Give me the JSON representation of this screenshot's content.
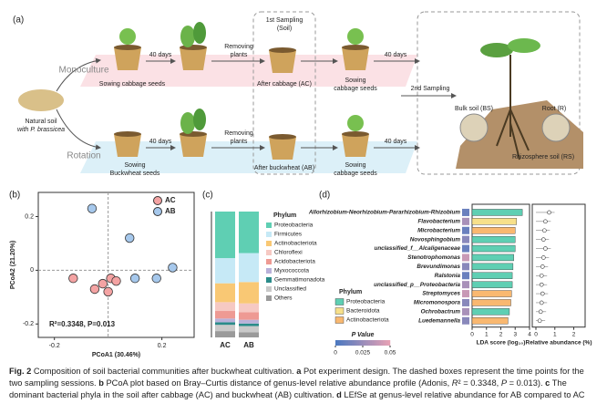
{
  "diagram": {
    "panel": "(a)",
    "monoculture": "Monoculture",
    "rotation": "Rotation",
    "natural_soil": [
      "Natural soil",
      "with P. brassicea"
    ],
    "mono_steps": {
      "sow": "Sowing cabbage seeds",
      "days1": "40 days",
      "remove": [
        "Removing",
        "plants"
      ],
      "sampling1": [
        "1st Sampling",
        "(Soil)"
      ],
      "after": "After cabbage (AC)",
      "sow2": [
        "Sowing",
        "cabbage seeds"
      ],
      "days2": "40 days"
    },
    "rot_steps": {
      "sow": [
        "Sowing",
        "Buckwheat seeds"
      ],
      "days1": "40 days",
      "remove": [
        "Removing",
        "plants"
      ],
      "after": "After buckwheat (AB)",
      "sow2": [
        "Sowing",
        "cabbage seeds"
      ],
      "days2": "40 days"
    },
    "sampling2": "2nd Sampling",
    "bulk": "Bulk soil (BS)",
    "root": "Root (R)",
    "rhizo": "Rhizosphere soil (RS)"
  },
  "chart_data": [
    {
      "type": "scatter",
      "panel": "(b)",
      "xlabel": "PCoA1 (30.46%)",
      "ylabel": "PCoA2 (21.20%)",
      "annotation": "R²=0.3348, P=0.013",
      "xlim": [
        -0.26,
        0.32
      ],
      "ylim": [
        -0.25,
        0.29
      ],
      "xticks": [
        -0.2,
        0.2
      ],
      "yticks": [
        -0.2,
        0,
        0.2
      ],
      "zero_lines": true,
      "legend_position": "upper right",
      "series": [
        {
          "name": "AC",
          "color": "#f4a3a3",
          "x": [
            -0.13,
            -0.02,
            0,
            -0.05,
            0.01,
            0.03
          ],
          "y": [
            -0.03,
            -0.05,
            -0.08,
            -0.07,
            -0.03,
            -0.04
          ]
        },
        {
          "name": "AB",
          "color": "#a6c8ec",
          "x": [
            -0.06,
            0.08,
            0.24,
            0.1,
            0.18
          ],
          "y": [
            0.23,
            0.12,
            0.01,
            -0.03,
            -0.03
          ]
        }
      ]
    },
    {
      "type": "bar",
      "orientation": "vertical",
      "stacked": true,
      "panel": "(c)",
      "legend_title": "Phylum",
      "categories": [
        "AC",
        "AB"
      ],
      "ylim": [
        0,
        100
      ],
      "series": [
        {
          "name": "Proteobacteria",
          "color": "#5fcfb3",
          "values": [
            37,
            33
          ]
        },
        {
          "name": "Firmicutes",
          "color": "#c6e9f6",
          "values": [
            20,
            23
          ]
        },
        {
          "name": "Actinobacteriota",
          "color": "#f9c874",
          "values": [
            15,
            17
          ]
        },
        {
          "name": "Chloroflexi",
          "color": "#f6c9c3",
          "values": [
            7,
            7
          ]
        },
        {
          "name": "Acidobacteriota",
          "color": "#ee9a93",
          "values": [
            6,
            6
          ]
        },
        {
          "name": "Myxococcota",
          "color": "#b9b1d9",
          "values": [
            3,
            3
          ]
        },
        {
          "name": "Gemmatimonadota",
          "color": "#2b8c8a",
          "values": [
            2,
            2
          ]
        },
        {
          "name": "Unclassified",
          "color": "#c9c9c9",
          "values": [
            5,
            5
          ]
        },
        {
          "name": "Others",
          "color": "#9a9a9a",
          "values": [
            5,
            4
          ]
        }
      ]
    },
    {
      "type": "bar",
      "orientation": "horizontal",
      "panel": "(d)",
      "legend_title": "Phylum",
      "categories": [
        "Allorhizobium-Neorhizobium-Pararhizobium-Rhizobium",
        "Flavobacterium",
        "Microbacterium",
        "Novosphingobium",
        "unclassified_f__Alcaligenaceae",
        "Stenotrophomonas",
        "Brevundimonas",
        "Ralstonia",
        "unclassified_p__Proteobacteria",
        "Streptomyces",
        "Micromonospora",
        "Ochrobactrum",
        "Luedemannella"
      ],
      "series": [
        {
          "name": "Proteobacteria",
          "color": "#5fcfb3",
          "values": [
            3.5,
            null,
            null,
            3.0,
            3.0,
            2.9,
            2.85,
            2.8,
            2.8,
            null,
            null,
            2.6,
            null
          ]
        },
        {
          "name": "Bacteroidota",
          "color": "#f7e08a",
          "values": [
            null,
            3.1,
            null,
            null,
            null,
            null,
            null,
            null,
            null,
            null,
            null,
            null,
            null
          ]
        },
        {
          "name": "Actinobacteriota",
          "color": "#f9b870",
          "values": [
            null,
            null,
            3.0,
            null,
            null,
            null,
            null,
            null,
            null,
            2.75,
            2.7,
            null,
            2.5
          ]
        }
      ],
      "xlim": [
        0,
        4
      ],
      "xticks": [
        0,
        1,
        2,
        3,
        4
      ],
      "xlabel": "LDA score (log₁₀)",
      "p_values": [
        0.01,
        0.03,
        0.01,
        0.02,
        0.01,
        0.04,
        0.02,
        0.01,
        0.03,
        0.04,
        0.02,
        0.03,
        0.02
      ],
      "p_label": "P Value",
      "clim": [
        0,
        0.05
      ],
      "cticks": [
        0,
        0.025,
        0.05
      ],
      "ccolors": [
        "#4a78c0",
        "#e8a1b4"
      ],
      "rel_abundance": [
        0.7,
        0.5,
        0.45,
        0.4,
        0.5,
        0.4,
        0.35,
        0.3,
        0.3,
        0.35,
        0.3,
        0.25,
        0.2
      ],
      "x2lim": [
        0,
        2.6
      ],
      "x2ticks": [
        0,
        1,
        2
      ],
      "x2label": "Relative abundance (%)"
    }
  ],
  "caption": {
    "segments": [
      {
        "text": "Fig. 2",
        "style": "bold"
      },
      {
        "text": "  Composition of soil bacterial communities after buckwheat cultivation. ",
        "style": "normal"
      },
      {
        "text": "a",
        "style": "bold"
      },
      {
        "text": " Pot experiment design. The dashed boxes represent the time points for the two sampling sessions. ",
        "style": "normal"
      },
      {
        "text": "b",
        "style": "bold"
      },
      {
        "text": " PCoA plot based on Bray–Curtis distance of genus-level relative abundance profile (Adonis, ",
        "style": "normal"
      },
      {
        "text": "R",
        "style": "italic"
      },
      {
        "text": "² = 0.3348, ",
        "style": "normal"
      },
      {
        "text": "P",
        "style": "italic"
      },
      {
        "text": " = 0.013). ",
        "style": "normal"
      },
      {
        "text": "c",
        "style": "bold"
      },
      {
        "text": " The dominant bacterial phyla in the soil after cabbage (AC) and buckwheat (AB) cultivation. ",
        "style": "normal"
      },
      {
        "text": "d",
        "style": "bold"
      },
      {
        "text": " LEfSe at genus-level relative abundance for AB compared to AC",
        "style": "normal"
      }
    ]
  }
}
